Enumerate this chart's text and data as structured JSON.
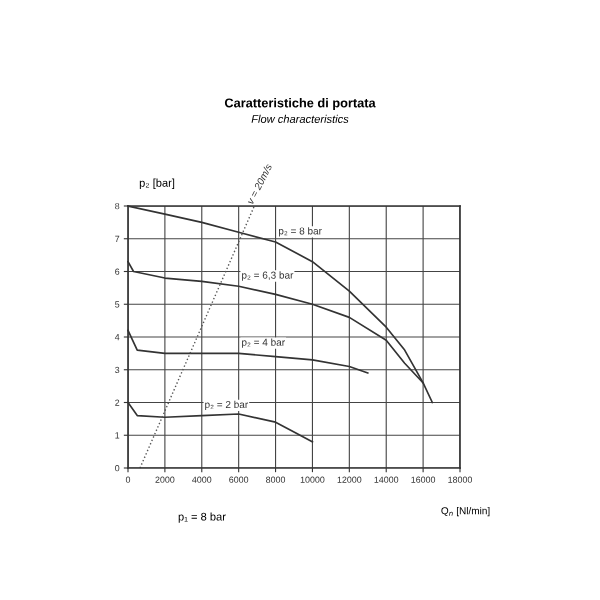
{
  "chart_data": {
    "type": "line",
    "title": "Caratteristiche di portata",
    "subtitle": "Flow characteristics",
    "xlabel": "Q$_{n}$ [Nl/min]",
    "ylabel": "p₂ [bar]",
    "xlim": [
      0,
      18000
    ],
    "ylim": [
      0,
      8
    ],
    "xticks": [
      0,
      2000,
      4000,
      6000,
      8000,
      10000,
      12000,
      14000,
      16000,
      18000
    ],
    "yticks": [
      0,
      1,
      2,
      3,
      4,
      5,
      6,
      7,
      8
    ],
    "grid": true,
    "marker": "none",
    "series": [
      {
        "name": "p₂ = 8 bar",
        "color": "#333333",
        "line_style": "solid",
        "x": [
          0,
          2000,
          4000,
          6000,
          8000,
          10000,
          12000,
          14000,
          15000,
          16000,
          16500
        ],
        "values": [
          8,
          7.75,
          7.5,
          7.2,
          6.9,
          6.3,
          5.4,
          4.3,
          3.6,
          2.6,
          2.0
        ]
      },
      {
        "name": "p₂ = 6,3 bar",
        "color": "#333333",
        "line_style": "solid",
        "x": [
          0,
          300,
          2000,
          4000,
          6000,
          8000,
          10000,
          12000,
          14000,
          15000,
          16000
        ],
        "values": [
          6.3,
          6.0,
          5.8,
          5.7,
          5.55,
          5.3,
          5.0,
          4.6,
          3.9,
          3.2,
          2.6
        ]
      },
      {
        "name": "p₂ = 4 bar",
        "color": "#333333",
        "line_style": "solid",
        "x": [
          0,
          500,
          2000,
          4000,
          6000,
          8000,
          10000,
          12000,
          13000
        ],
        "values": [
          4.2,
          3.6,
          3.5,
          3.5,
          3.5,
          3.4,
          3.3,
          3.1,
          2.9
        ]
      },
      {
        "name": "p₂ = 2 bar",
        "color": "#333333",
        "line_style": "solid",
        "x": [
          0,
          500,
          2000,
          4000,
          6000,
          8000,
          9000,
          10000
        ],
        "values": [
          2.0,
          1.6,
          1.55,
          1.6,
          1.65,
          1.4,
          1.1,
          0.8
        ]
      },
      {
        "name": "v = 20m/s",
        "color": "#555555",
        "line_style": "dotted",
        "x": [
          650,
          6850
        ],
        "values": [
          0,
          8
        ]
      }
    ],
    "annotations": [
      "p₁ = 8 bar"
    ]
  }
}
